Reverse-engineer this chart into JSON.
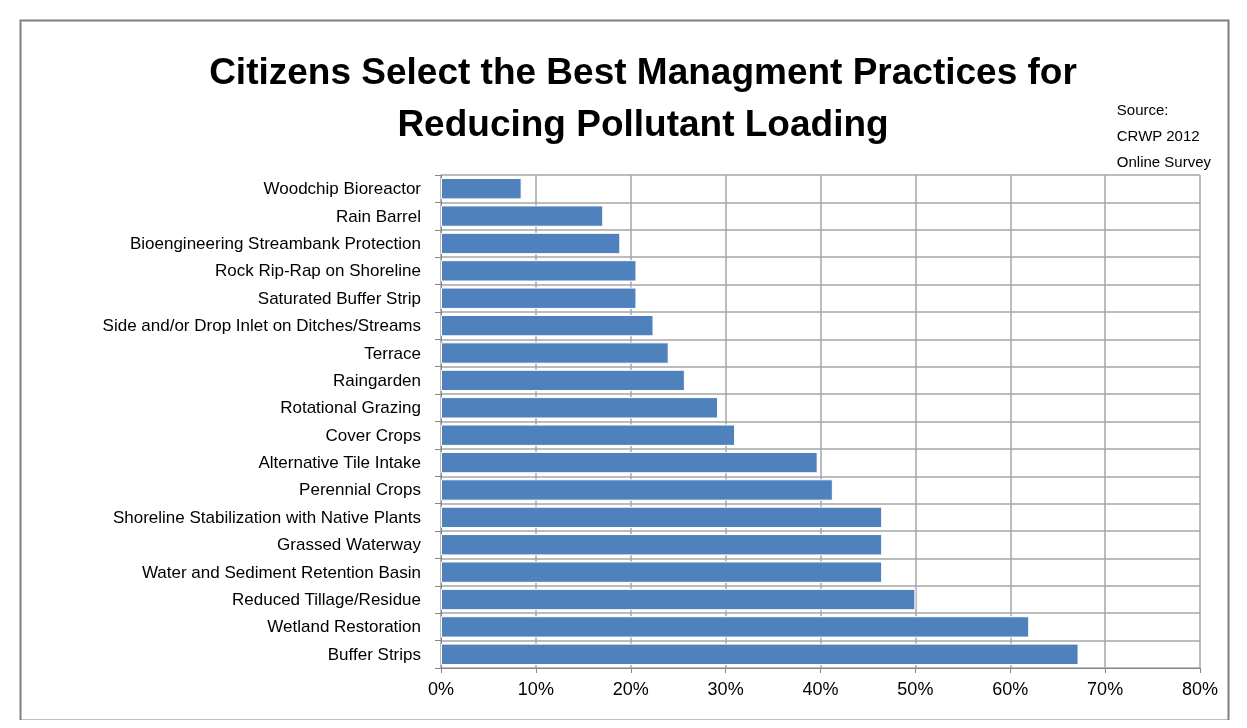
{
  "chart_data": {
    "type": "bar",
    "orientation": "horizontal",
    "title": "Citizens Select the Best Managment Practices for\nReducing Pollutant Loading",
    "annotations": [
      "Source:\nCRWP 2012\nOnline Survey"
    ],
    "categories": [
      "Woodchip Bioreactor",
      "Rain Barrel",
      "Bioengineering Streambank Protection",
      "Rock Rip-Rap on Shoreline",
      "Saturated Buffer Strip",
      "Side and/or Drop Inlet on Ditches/Streams",
      "Terrace",
      "Raingarden",
      "Rotational Grazing",
      "Cover Crops",
      "Alternative Tile Intake",
      "Perennial Crops",
      "Shoreline Stabilization with Native Plants",
      "Grassed Waterway",
      "Water and Sediment Retention Basin",
      "Reduced Tillage/Residue",
      "Wetland Restoration",
      "Buffer Strips"
    ],
    "values": [
      8.5,
      17.1,
      18.9,
      20.6,
      20.6,
      22.4,
      24.0,
      25.7,
      29.2,
      31.0,
      39.7,
      41.3,
      46.5,
      46.5,
      46.5,
      50.0,
      62.0,
      67.2
    ],
    "color": "#4f81bd",
    "xlim": [
      0,
      80
    ],
    "xticks": [
      {
        "value": 0,
        "label": "0%"
      },
      {
        "value": 10,
        "label": "10%"
      },
      {
        "value": 20,
        "label": "20%"
      },
      {
        "value": 30,
        "label": "30%"
      },
      {
        "value": 40,
        "label": "40%"
      },
      {
        "value": 50,
        "label": "50%"
      },
      {
        "value": 60,
        "label": "60%"
      },
      {
        "value": 70,
        "label": "70%"
      },
      {
        "value": 80,
        "label": "80%"
      }
    ],
    "grid": true
  }
}
